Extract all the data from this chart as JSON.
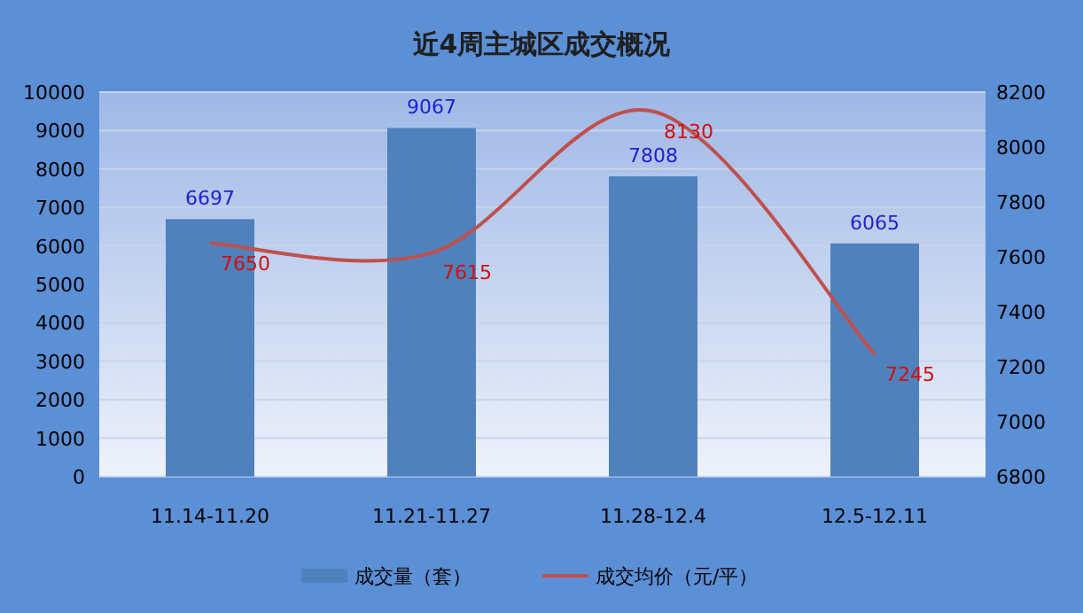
{
  "chart_data": {
    "type": "bar",
    "title": "近4周主城区成交概况",
    "categories": [
      "11.14-11.20",
      "11.21-11.27",
      "11.28-12.4",
      "12.5-12.11"
    ],
    "series": [
      {
        "name": "成交量（套）",
        "color": "#4f81bd",
        "values": [
          6697,
          9067,
          7808,
          6065
        ]
      },
      {
        "name": "成交均价（元/平）",
        "type": "line",
        "axis": "y2",
        "color": "#c0504d",
        "values": [
          7650,
          7615,
          8130,
          7245
        ]
      }
    ],
    "ylim": [
      0,
      10000
    ],
    "yticks": [
      0,
      1000,
      2000,
      3000,
      4000,
      5000,
      6000,
      7000,
      8000,
      9000,
      10000
    ],
    "y2lim": [
      6800,
      8200
    ],
    "y2ticks": [
      6800,
      7000,
      7200,
      7400,
      7600,
      7800,
      8000,
      8200
    ],
    "grid": "y",
    "legend": "bottom",
    "data_labels": true
  }
}
